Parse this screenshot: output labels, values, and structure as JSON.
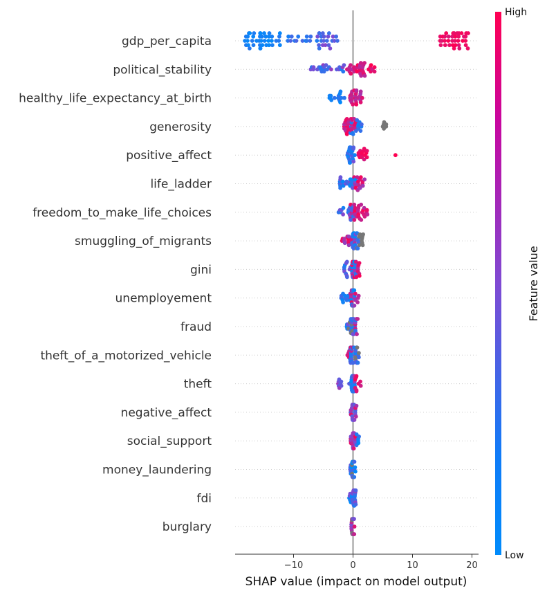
{
  "chart_data": {
    "type": "scatter",
    "subtype": "shap_beeswarm",
    "xlabel": "SHAP value (impact on model output)",
    "xlim": [
      -20,
      21
    ],
    "xticks": [
      -10,
      0,
      10,
      20
    ],
    "grid": "horizontal dotted per feature",
    "colorbar": {
      "title": "Feature value",
      "high_label": "High",
      "low_label": "Low",
      "low_color": "#008bfb",
      "mid_color": "#7f4ad3",
      "high_color": "#ff0052"
    },
    "neutral_color": "#777777",
    "features": [
      {
        "name": "gdp_per_capita",
        "spread": 2.0,
        "groups": [
          {
            "min": -18.5,
            "max": -12.0,
            "n": 40,
            "low": 0.0,
            "high": 0.15
          },
          {
            "min": -11.0,
            "max": -5.5,
            "n": 14,
            "low": 0.05,
            "high": 0.3
          },
          {
            "min": -6.0,
            "max": -2.0,
            "n": 22,
            "low": 0.2,
            "high": 0.55
          },
          {
            "min": 14.5,
            "max": 19.5,
            "n": 36,
            "low": 0.85,
            "high": 1.0
          }
        ]
      },
      {
        "name": "political_stability",
        "spread": 1.0,
        "groups": [
          {
            "min": -7.5,
            "max": -1.0,
            "n": 24,
            "low": 0.1,
            "high": 0.6
          },
          {
            "min": -1.0,
            "max": 3.8,
            "n": 34,
            "low": 0.7,
            "high": 1.0
          }
        ]
      },
      {
        "name": "healthy_life_expectancy_at_birth",
        "spread": 1.0,
        "groups": [
          {
            "min": -4.0,
            "max": -1.0,
            "n": 14,
            "low": 0.0,
            "high": 0.2
          },
          {
            "min": -0.5,
            "max": 1.8,
            "n": 26,
            "low": 0.6,
            "high": 1.0
          }
        ]
      },
      {
        "name": "generosity",
        "spread": 1.0,
        "groups": [
          {
            "min": -1.5,
            "max": 0.5,
            "n": 26,
            "low": 0.7,
            "high": 1.0
          },
          {
            "min": -0.5,
            "max": 1.5,
            "n": 14,
            "low": 0.0,
            "high": 0.3
          },
          {
            "min": 5.0,
            "max": 5.6,
            "n": 6,
            "gray": true
          }
        ]
      },
      {
        "name": "positive_affect",
        "spread": 1.0,
        "groups": [
          {
            "min": -1.0,
            "max": 0.3,
            "n": 22,
            "low": 0.0,
            "high": 0.45
          },
          {
            "min": 0.8,
            "max": 2.5,
            "n": 14,
            "low": 0.8,
            "high": 1.0
          },
          {
            "min": 7.0,
            "max": 7.2,
            "n": 1,
            "low": 1.0,
            "high": 1.0
          }
        ]
      },
      {
        "name": "life_ladder",
        "spread": 1.0,
        "groups": [
          {
            "min": -2.5,
            "max": 0.5,
            "n": 22,
            "low": 0.0,
            "high": 0.5
          },
          {
            "min": 0.0,
            "max": 2.0,
            "n": 16,
            "low": 0.6,
            "high": 1.0
          }
        ]
      },
      {
        "name": "freedom_to_make_life_choices",
        "spread": 1.0,
        "groups": [
          {
            "min": -2.5,
            "max": 0.5,
            "n": 18,
            "low": 0.0,
            "high": 0.55
          },
          {
            "min": -0.5,
            "max": 2.5,
            "n": 28,
            "low": 0.7,
            "high": 1.0
          }
        ]
      },
      {
        "name": "smuggling_of_migrants",
        "spread": 1.0,
        "groups": [
          {
            "min": -2.0,
            "max": 0.5,
            "n": 16,
            "low": 0.5,
            "high": 1.0
          },
          {
            "min": -0.2,
            "max": 1.0,
            "n": 18,
            "low": 0.0,
            "high": 0.3
          },
          {
            "min": 0.3,
            "max": 1.8,
            "n": 10,
            "gray": true
          }
        ]
      },
      {
        "name": "gini",
        "spread": 1.0,
        "groups": [
          {
            "min": -1.5,
            "max": 0.5,
            "n": 22,
            "low": 0.0,
            "high": 0.5
          },
          {
            "min": -0.3,
            "max": 1.2,
            "n": 18,
            "low": 0.6,
            "high": 1.0
          }
        ]
      },
      {
        "name": "unemployement",
        "spread": 1.0,
        "groups": [
          {
            "min": -2.0,
            "max": 0.3,
            "n": 24,
            "low": 0.0,
            "high": 0.3
          },
          {
            "min": -0.5,
            "max": 1.0,
            "n": 16,
            "low": 0.6,
            "high": 1.0
          }
        ]
      },
      {
        "name": "fraud",
        "spread": 1.0,
        "groups": [
          {
            "min": -1.2,
            "max": 0.5,
            "n": 22,
            "low": 0.0,
            "high": 0.5
          },
          {
            "min": 0.0,
            "max": 0.8,
            "n": 8,
            "low": 0.5,
            "high": 0.9
          },
          {
            "min": -1.0,
            "max": 0.0,
            "n": 6,
            "gray": true
          }
        ]
      },
      {
        "name": "theft_of_a_motorized_vehicle",
        "spread": 1.0,
        "groups": [
          {
            "min": -0.5,
            "max": 1.0,
            "n": 30,
            "low": 0.0,
            "high": 0.4
          },
          {
            "min": -1.0,
            "max": 0.0,
            "n": 8,
            "low": 0.7,
            "high": 1.0
          },
          {
            "min": 0.3,
            "max": 1.0,
            "n": 4,
            "gray": true
          }
        ]
      },
      {
        "name": "theft",
        "spread": 1.0,
        "groups": [
          {
            "min": -2.5,
            "max": 0.3,
            "n": 16,
            "low": 0.3,
            "high": 0.7
          },
          {
            "min": -0.3,
            "max": 0.3,
            "n": 22,
            "low": 0.0,
            "high": 0.2
          },
          {
            "min": 0.0,
            "max": 1.4,
            "n": 10,
            "low": 0.8,
            "high": 1.0
          }
        ]
      },
      {
        "name": "negative_affect",
        "spread": 1.0,
        "groups": [
          {
            "min": -0.5,
            "max": 0.6,
            "n": 26,
            "low": 0.2,
            "high": 0.9
          }
        ]
      },
      {
        "name": "social_support",
        "spread": 1.0,
        "groups": [
          {
            "min": -0.5,
            "max": 0.4,
            "n": 22,
            "low": 0.4,
            "high": 1.0
          },
          {
            "min": 0.5,
            "max": 1.2,
            "n": 6,
            "low": 0.0,
            "high": 0.2
          }
        ]
      },
      {
        "name": "money_laundering",
        "spread": 1.0,
        "groups": [
          {
            "min": -0.5,
            "max": 0.4,
            "n": 22,
            "low": 0.0,
            "high": 0.5
          },
          {
            "min": -0.2,
            "max": 0.2,
            "n": 6,
            "gray": true
          }
        ]
      },
      {
        "name": "fdi",
        "spread": 1.0,
        "groups": [
          {
            "min": -0.7,
            "max": 0.5,
            "n": 24,
            "low": 0.0,
            "high": 0.6
          }
        ]
      },
      {
        "name": "burglary",
        "spread": 1.0,
        "groups": [
          {
            "min": -0.3,
            "max": 0.3,
            "n": 16,
            "low": 0.3,
            "high": 0.9
          },
          {
            "min": -0.2,
            "max": 0.2,
            "n": 8,
            "gray": true
          }
        ]
      }
    ]
  }
}
